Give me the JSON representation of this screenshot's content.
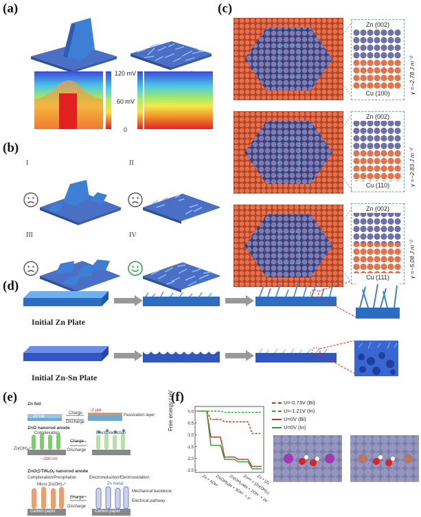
{
  "panels": {
    "a": "(a)",
    "b": "(b)",
    "c": "(c)",
    "d": "(d)",
    "e": "(e)",
    "f": "(f)"
  },
  "panel_a": {
    "colorbar_max": "120 mV",
    "colorbar_mid": "60 mV",
    "colorbar_min": "0"
  },
  "panel_b": {
    "labels": [
      "I",
      "II",
      "III",
      "IV"
    ]
  },
  "panel_c": {
    "rows": [
      {
        "top": "Zn (002)",
        "bottom": "Cu (100)",
        "gamma": "γ =−2.78  J m⁻²"
      },
      {
        "top": "Zn (002)",
        "bottom": "Cu (110)",
        "gamma": "γ =−2.83 J m⁻²"
      },
      {
        "top": "Zn (002)",
        "bottom": "Cu (111)",
        "gamma": "γ =−5.08 J m⁻²"
      }
    ]
  },
  "panel_d": {
    "caption1": "Initial Zn Plate",
    "caption2": "Initial Zn-Sn Plate"
  },
  "panel_e": {
    "zn_foil": "Zn foil",
    "charge": "Charge",
    "discharge": "Discharge",
    "zn_label": "Zn foil",
    "passivation": "Passivation layer",
    "thickness": "~2 μm",
    "zno_title": "ZnO nanorod anode",
    "complexation": "Complexation",
    "electroreduction": "Electroreduction",
    "znoh": "Zn(OH)₄²⁻",
    "size": "~200 nm",
    "zno_tin_title": "ZnO@TiNₓOᵧ nanorod anode",
    "comp_precip": "Complexation/Precipitation",
    "elec_red_ox": "Electroreduction/Electrooxidation",
    "micro": "Micro Zn(OH)₄²⁻",
    "zn_metal": "Zn metal",
    "mech": "Mechanical backbone",
    "elec_path": "Electrical pathway",
    "carbon": "Carbon paper"
  },
  "chart_data": {
    "type": "line",
    "title": "",
    "xlabel": "",
    "ylabel": "Free energy / eV",
    "ylim": [
      -2.6,
      0.2
    ],
    "yticks": [
      "0.0",
      "-0.5",
      "-1.0",
      "-1.5",
      "-2.0",
      "-2.5"
    ],
    "categories": [
      "Zn + 4OH⁻",
      "Zn(OH)ₐds + 3OH⁻ + e⁻",
      "Zn(OH)₂ads + 2OH⁻ + 2e⁻",
      "Znᵃᵈˢ + [Zn(OH)₃]⁻ + OH⁻ + 2e⁻",
      "Zn + [Zn(OH)₄]²⁻ + 2e⁻"
    ],
    "series": [
      {
        "name": "U=-0.73V (Bi)",
        "color": "#d62728",
        "dashed": true,
        "values": [
          0.0,
          -0.35,
          -0.45,
          -0.45,
          -0.95
        ]
      },
      {
        "name": "U=-1.21V (In)",
        "color": "#2ca02c",
        "dashed": true,
        "values": [
          0.0,
          0.0,
          -0.05,
          -0.05,
          -0.05
        ]
      },
      {
        "name": "U=0V (Bi)",
        "color": "#d62728",
        "dashed": false,
        "values": [
          0.0,
          -1.1,
          -1.95,
          -2.05,
          -2.35
        ]
      },
      {
        "name": "U=0V (In)",
        "color": "#2ca02c",
        "dashed": false,
        "values": [
          0.0,
          -1.45,
          -2.05,
          -2.15,
          -2.45
        ]
      }
    ]
  }
}
